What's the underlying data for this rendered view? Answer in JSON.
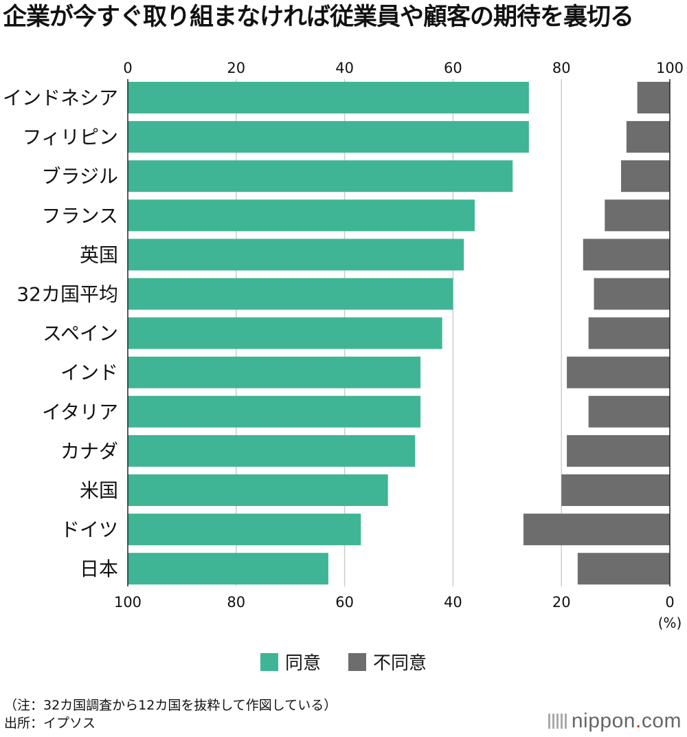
{
  "title": "企業が今すぐ取り組まなければ従業員や顧客の期待を裏切る",
  "colors": {
    "agree": "#3fb595",
    "disagree": "#6d6d6d",
    "grid": "#cccccc"
  },
  "legend": {
    "agree": "同意",
    "disagree": "不同意"
  },
  "unit_label": "(%)",
  "note": "（注：32カ国調査から12カ国を抜粋して作図している）",
  "source": "出所：イプソス",
  "logo": {
    "main": "nippon",
    "dot": ".",
    "suffix": "com"
  },
  "chart_data": {
    "type": "bar",
    "orientation": "horizontal-diverging",
    "title": "企業が今すぐ取り組まなければ従業員や顧客の期待を裏切る",
    "top_axis_ticks": [
      "0",
      "20",
      "40",
      "60",
      "80",
      "100"
    ],
    "bottom_axis_ticks": [
      "100",
      "80",
      "60",
      "40",
      "20",
      "0"
    ],
    "xlim": [
      0,
      100
    ],
    "categories": [
      "インドネシア",
      "フィリピン",
      "ブラジル",
      "フランス",
      "英国",
      "32カ国平均",
      "スペイン",
      "インド",
      "イタリア",
      "カナダ",
      "米国",
      "ドイツ",
      "日本"
    ],
    "series": [
      {
        "name": "同意",
        "direction": "left-to-right",
        "values": [
          74,
          74,
          71,
          64,
          62,
          60,
          58,
          54,
          54,
          53,
          48,
          43,
          37
        ]
      },
      {
        "name": "不同意",
        "direction": "right-to-left",
        "values": [
          6,
          8,
          9,
          12,
          16,
          14,
          15,
          19,
          15,
          19,
          20,
          27,
          17
        ]
      }
    ]
  }
}
